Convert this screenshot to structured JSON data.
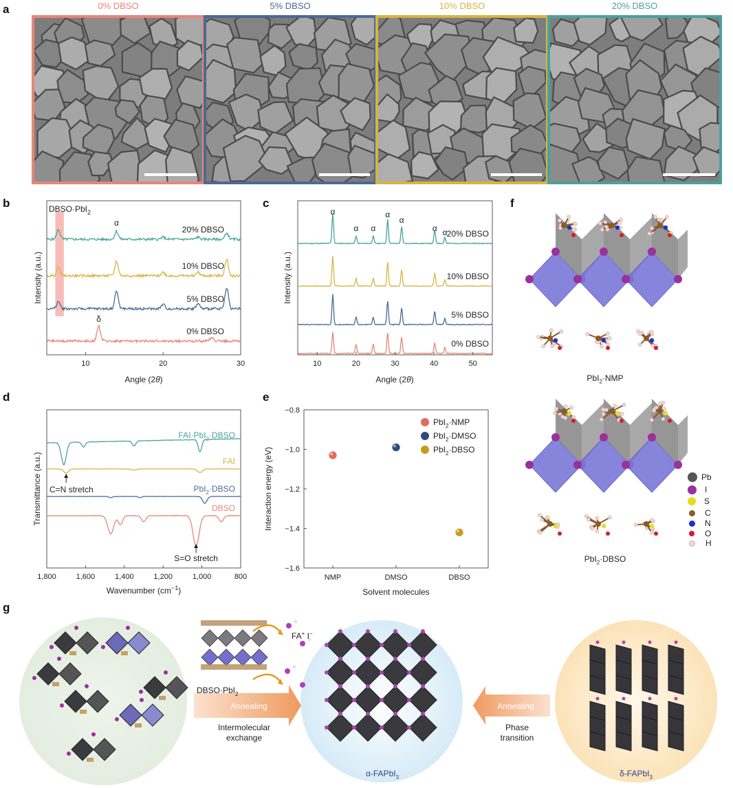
{
  "panel_labels": {
    "a": "a",
    "b": "b",
    "c": "c",
    "d": "d",
    "e": "e",
    "f": "f",
    "g": "g"
  },
  "colors": {
    "dbso0": "#e8857a",
    "dbso5": "#4b6a93",
    "dbso10": "#d5b543",
    "dbso20": "#4aa29b"
  },
  "panel_a": {
    "titles": [
      "0% DBSO",
      "5% DBSO",
      "10% DBSO",
      "20% DBSO"
    ]
  },
  "chart_data": [
    {
      "id": "b",
      "type": "line",
      "xlabel_prefix": "Angle (2",
      "xlabel_theta": "θ",
      "xlabel_suffix": ")",
      "ylabel": "Intensity (a.u.)",
      "xlim": [
        5,
        30
      ],
      "xticks": [
        "10",
        "20",
        "30"
      ],
      "highlight_label": "DBSO·PbI",
      "highlight_sub": "2",
      "series": [
        {
          "name": "20% DBSO",
          "peaks": [
            [
              6.5,
              0.55
            ],
            [
              14.0,
              0.45
            ],
            [
              20.0,
              0.12
            ],
            [
              24.5,
              0.12
            ],
            [
              28.2,
              0.35
            ]
          ]
        },
        {
          "name": "10% DBSO",
          "peaks": [
            [
              6.5,
              0.45
            ],
            [
              14.0,
              0.8
            ],
            [
              20.0,
              0.2
            ],
            [
              24.5,
              0.2
            ],
            [
              28.2,
              0.9
            ]
          ]
        },
        {
          "name": "5% DBSO",
          "peaks": [
            [
              6.5,
              0.4
            ],
            [
              14.0,
              1.0
            ],
            [
              20.0,
              0.25
            ],
            [
              24.5,
              0.28
            ],
            [
              28.2,
              1.2
            ]
          ]
        },
        {
          "name": "0% DBSO",
          "peaks": [
            [
              11.7,
              0.85
            ],
            [
              26.3,
              0.2
            ]
          ]
        }
      ],
      "annotations": [
        {
          "text": "α",
          "x": 14.0
        },
        {
          "text": "δ",
          "x": 11.7
        }
      ]
    },
    {
      "id": "c",
      "type": "line",
      "xlabel_prefix": "Angle (2",
      "xlabel_theta": "θ",
      "xlabel_suffix": ")",
      "ylabel": "Intensity (a.u.)",
      "xlim": [
        5,
        55
      ],
      "xticks": [
        "10",
        "20",
        "30",
        "40",
        "50"
      ],
      "series": [
        {
          "name": "20% DBSO",
          "peaks": [
            [
              14.0,
              1.0
            ],
            [
              20.0,
              0.25
            ],
            [
              24.4,
              0.25
            ],
            [
              28.1,
              0.8
            ],
            [
              31.7,
              0.55
            ],
            [
              40.2,
              0.45
            ],
            [
              42.8,
              0.2
            ]
          ]
        },
        {
          "name": "10% DBSO",
          "peaks": [
            [
              14.0,
              1.0
            ],
            [
              20.0,
              0.25
            ],
            [
              24.4,
              0.25
            ],
            [
              28.1,
              0.8
            ],
            [
              31.7,
              0.55
            ],
            [
              40.2,
              0.45
            ],
            [
              42.8,
              0.2
            ]
          ]
        },
        {
          "name": "5% DBSO",
          "peaks": [
            [
              14.0,
              1.0
            ],
            [
              20.0,
              0.25
            ],
            [
              24.4,
              0.25
            ],
            [
              28.1,
              0.8
            ],
            [
              31.7,
              0.55
            ],
            [
              40.2,
              0.45
            ],
            [
              42.8,
              0.2
            ]
          ]
        },
        {
          "name": "0% DBSO",
          "peaks": [
            [
              14.0,
              0.7
            ],
            [
              20.0,
              0.3
            ],
            [
              24.4,
              0.3
            ],
            [
              28.1,
              0.7
            ],
            [
              31.7,
              0.55
            ],
            [
              40.2,
              0.35
            ],
            [
              42.8,
              0.2
            ]
          ]
        }
      ],
      "annotations": [
        {
          "text": "α",
          "x": 14.0
        },
        {
          "text": "α",
          "x": 20.0
        },
        {
          "text": "α",
          "x": 24.4
        },
        {
          "text": "α",
          "x": 28.1
        },
        {
          "text": "α",
          "x": 31.7
        },
        {
          "text": "α",
          "x": 40.2
        },
        {
          "text": "α",
          "x": 42.8
        }
      ]
    },
    {
      "id": "d",
      "type": "line",
      "xlabel_prefix": "Wavenumber (cm",
      "xlabel_sup": "−1",
      "xlabel_suffix": ")",
      "ylabel": "Transmittance (a.u.)",
      "xlim": [
        1800,
        800
      ],
      "xticks": [
        "1,800",
        "1,600",
        "1,400",
        "1,200",
        "1,000",
        "800"
      ],
      "series": [
        {
          "name": "FAI·PbI",
          "sub1": "2",
          "tail": "·DBSO",
          "dips": [
            [
              1712,
              0.9
            ],
            [
              1610,
              0.2
            ],
            [
              1350,
              0.2
            ],
            [
              1010,
              0.5
            ]
          ]
        },
        {
          "name": "FAI",
          "dips": [
            [
              1700,
              0.35
            ],
            [
              1350,
              0.1
            ],
            [
              1010,
              0.3
            ]
          ]
        },
        {
          "name": "PbI",
          "sub1": "2",
          "tail": "·DBSO",
          "dips": [
            [
              1470,
              0.1
            ],
            [
              1320,
              0.1
            ],
            [
              985,
              0.55
            ]
          ]
        },
        {
          "name": "DBSO",
          "dips": [
            [
              1470,
              0.6
            ],
            [
              1420,
              0.3
            ],
            [
              1300,
              0.2
            ],
            [
              1030,
              1.0
            ],
            [
              900,
              0.2
            ]
          ]
        }
      ],
      "annotations": [
        {
          "text": "C=N stretch"
        },
        {
          "text": "S=O stretch"
        }
      ]
    },
    {
      "id": "e",
      "type": "scatter",
      "xlabel": "Solvent molecules",
      "ylabel": "Interaction energy (eV)",
      "categories": [
        "NMP",
        "DMSO",
        "DBSO"
      ],
      "ylim": [
        -1.6,
        -0.8
      ],
      "yticks": [
        "−0.8",
        "−1.0",
        "−1.2",
        "−1.4",
        "−1.6"
      ],
      "values": [
        -1.03,
        -0.99,
        -1.42
      ],
      "series_colors": [
        "#e46a60",
        "#2c4d7a",
        "#c79a1a"
      ],
      "legend": [
        {
          "name": "PbI",
          "sub": "2",
          "tail": "·NMP"
        },
        {
          "name": "PbI",
          "sub": "2",
          "tail": "·DMSO"
        },
        {
          "name": "PbI",
          "sub": "2",
          "tail": "·DBSO"
        }
      ]
    }
  ],
  "panel_f": {
    "caption_top": {
      "a": "PbI",
      "sub": "2",
      "b": "·NMP"
    },
    "caption_bottom": {
      "a": "PbI",
      "sub": "2",
      "b": "·DBSO"
    },
    "legend": [
      {
        "label": "Pb",
        "color": "#555555"
      },
      {
        "label": "I",
        "color": "#9b2f9e"
      },
      {
        "label": "S",
        "color": "#e8dc20"
      },
      {
        "label": "C",
        "color": "#8a5a2b"
      },
      {
        "label": "N",
        "color": "#1a35c8"
      },
      {
        "label": "O",
        "color": "#d42020"
      },
      {
        "label": "H",
        "color": "#f3d7d7"
      }
    ]
  },
  "panel_g": {
    "fa_label": {
      "a": "FA",
      "sup1": "+",
      "b": " I",
      "sup2": "−"
    },
    "dbso_label": {
      "a": "DBSO·PbI",
      "sub": "2"
    },
    "arrow1_label": "Annealing",
    "arrow1_caption": [
      "Intermolecular",
      "exchange"
    ],
    "arrow2_label": "Annealing",
    "arrow2_caption": [
      "Phase",
      "transition"
    ],
    "center_label": {
      "a": "α-FAPbI",
      "sub": "3"
    },
    "right_label": {
      "a": "δ-FAPbI",
      "sub": "3"
    }
  }
}
